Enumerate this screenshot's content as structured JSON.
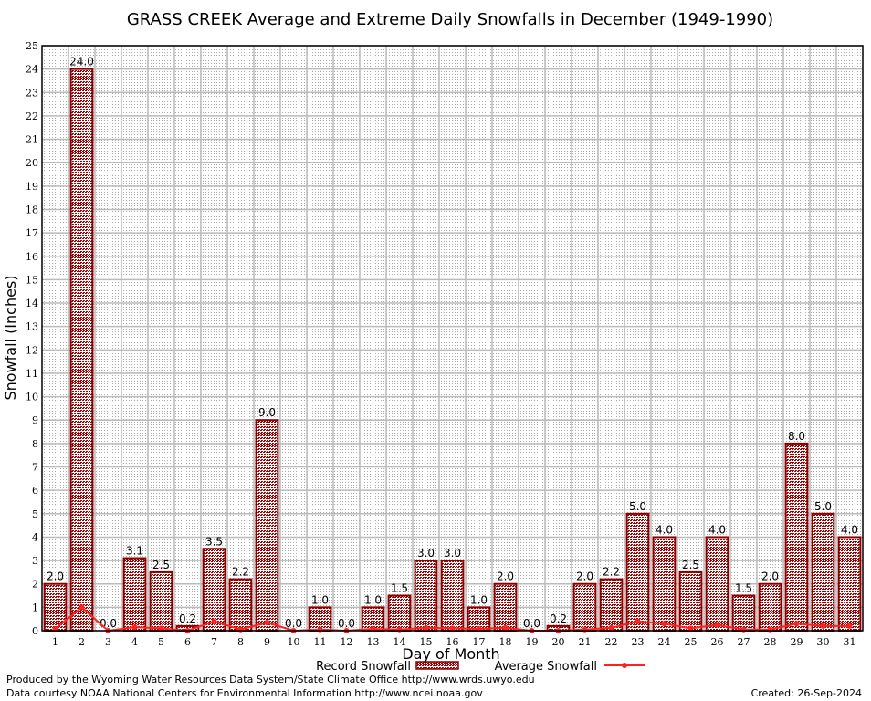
{
  "chart_data": {
    "type": "bar",
    "title": "GRASS CREEK Average and Extreme Daily Snowfalls in December (1949-1990)",
    "xlabel": "Day of Month",
    "ylabel": "Snowfall (Inches)",
    "ylim": [
      0,
      25
    ],
    "grid": true,
    "legend_placement": "bottom",
    "categories": [
      "1",
      "2",
      "3",
      "4",
      "5",
      "6",
      "7",
      "8",
      "9",
      "10",
      "11",
      "12",
      "13",
      "14",
      "15",
      "16",
      "17",
      "18",
      "19",
      "20",
      "21",
      "22",
      "23",
      "24",
      "25",
      "26",
      "27",
      "28",
      "29",
      "30",
      "31"
    ],
    "y_ticks": [
      "0",
      "1",
      "2",
      "3",
      "4",
      "5",
      "6",
      "7",
      "8",
      "9",
      "10",
      "11",
      "12",
      "13",
      "14",
      "15",
      "16",
      "17",
      "18",
      "19",
      "20",
      "21",
      "22",
      "23",
      "24",
      "25"
    ],
    "series": [
      {
        "name": "Record Snowfall",
        "type": "bar",
        "color": "#8b0000",
        "values": [
          2.0,
          24.0,
          0.0,
          3.1,
          2.5,
          0.2,
          3.5,
          2.2,
          9.0,
          0.0,
          1.0,
          0.0,
          1.0,
          1.5,
          3.0,
          3.0,
          1.0,
          2.0,
          0.0,
          0.2,
          2.0,
          2.2,
          5.0,
          4.0,
          2.5,
          4.0,
          1.5,
          2.0,
          8.0,
          5.0,
          4.0
        ],
        "labels": [
          "2.0",
          "24.0",
          "0.0",
          "3.1",
          "2.5",
          "0.2",
          "3.5",
          "2.2",
          "9.0",
          "0.0",
          "1.0",
          "0.0",
          "1.0",
          "1.5",
          "3.0",
          "3.0",
          "1.0",
          "2.0",
          "0.0",
          "0.2",
          "2.0",
          "2.2",
          "5.0",
          "4.0",
          "2.5",
          "4.0",
          "1.5",
          "2.0",
          "8.0",
          "5.0",
          "4.0"
        ]
      },
      {
        "name": "Average Snowfall",
        "type": "line",
        "color": "#ff2020",
        "values": [
          0.08,
          1.0,
          0.0,
          0.15,
          0.1,
          0.0,
          0.4,
          0.05,
          0.35,
          0.0,
          0.05,
          0.0,
          0.08,
          0.05,
          0.12,
          0.1,
          0.08,
          0.12,
          0.0,
          0.0,
          0.05,
          0.12,
          0.4,
          0.3,
          0.1,
          0.25,
          0.05,
          0.05,
          0.3,
          0.2,
          0.2
        ]
      }
    ]
  },
  "footer": {
    "line1": "Produced by the Wyoming Water Resources Data System/State Climate Office http://www.wrds.uwyo.edu",
    "line2": "Data courtesy NOAA National Centers for Environmental Information http://www.ncei.noaa.gov",
    "created": "Created:  26-Sep-2024"
  }
}
